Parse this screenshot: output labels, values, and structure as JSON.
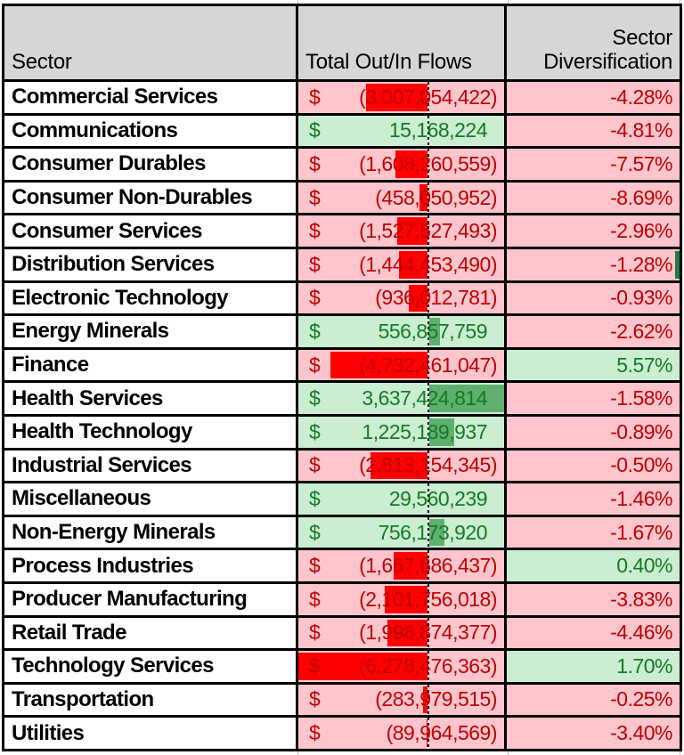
{
  "header": {
    "sector": "Sector",
    "flows": "Total Out/In Flows",
    "diversification_line1": "Sector",
    "diversification_line2": "Diversification"
  },
  "currency_symbol": "$",
  "colors": {
    "header_bg": "#D6D6D6",
    "border": "#000000",
    "gridline": "#BFBFBF",
    "negative_bg": "#FFC5CC",
    "negative_text": "#C00000",
    "positive_bg": "#CBEDD1",
    "positive_text": "#127B24",
    "negative_bar": "#FF0000",
    "positive_bar": "#5FAF6F",
    "selection_green": "#1E7D45"
  },
  "selection_marker": {
    "row": "Distribution Services"
  },
  "rows": [
    {
      "sector": "Commercial Services",
      "flow_display": "(3,007,054,422)",
      "flow_value": -3007054422,
      "div_display": "-4.28%",
      "div_value": -4.28
    },
    {
      "sector": "Communications",
      "flow_display": "15,168,224",
      "flow_value": 15168224,
      "div_display": "-4.81%",
      "div_value": -4.81
    },
    {
      "sector": "Consumer Durables",
      "flow_display": "(1,608,260,559)",
      "flow_value": -1608260559,
      "div_display": "-7.57%",
      "div_value": -7.57
    },
    {
      "sector": "Consumer Non-Durables",
      "flow_display": "(458,050,952)",
      "flow_value": -458050952,
      "div_display": "-8.69%",
      "div_value": -8.69
    },
    {
      "sector": "Consumer Services",
      "flow_display": "(1,527,527,493)",
      "flow_value": -1527527493,
      "div_display": "-2.96%",
      "div_value": -2.96
    },
    {
      "sector": "Distribution Services",
      "flow_display": "(1,444,453,490)",
      "flow_value": -1444453490,
      "div_display": "-1.28%",
      "div_value": -1.28
    },
    {
      "sector": "Electronic Technology",
      "flow_display": "(936,012,781)",
      "flow_value": -936012781,
      "div_display": "-0.93%",
      "div_value": -0.93
    },
    {
      "sector": "Energy Minerals",
      "flow_display": "556,857,759",
      "flow_value": 556857759,
      "div_display": "-2.62%",
      "div_value": -2.62
    },
    {
      "sector": "Finance",
      "flow_display": "(4,732,461,047)",
      "flow_value": -4732461047,
      "div_display": "5.57%",
      "div_value": 5.57
    },
    {
      "sector": "Health Services",
      "flow_display": "3,637,424,814",
      "flow_value": 3637424814,
      "div_display": "-1.58%",
      "div_value": -1.58
    },
    {
      "sector": "Health Technology",
      "flow_display": "1,225,189,937",
      "flow_value": 1225189937,
      "div_display": "-0.89%",
      "div_value": -0.89
    },
    {
      "sector": "Industrial Services",
      "flow_display": "(2,813,154,345)",
      "flow_value": -2813154345,
      "div_display": "-0.50%",
      "div_value": -0.5
    },
    {
      "sector": "Miscellaneous",
      "flow_display": "29,560,239",
      "flow_value": 29560239,
      "div_display": "-1.46%",
      "div_value": -1.46
    },
    {
      "sector": "Non-Energy Minerals",
      "flow_display": "756,173,920",
      "flow_value": 756173920,
      "div_display": "-1.67%",
      "div_value": -1.67
    },
    {
      "sector": "Process Industries",
      "flow_display": "(1,667,686,437)",
      "flow_value": -1667686437,
      "div_display": "0.40%",
      "div_value": 0.4
    },
    {
      "sector": "Producer Manufacturing",
      "flow_display": "(2,101,756,018)",
      "flow_value": -2101756018,
      "div_display": "-3.83%",
      "div_value": -3.83
    },
    {
      "sector": "Retail Trade",
      "flow_display": "(1,998,874,377)",
      "flow_value": -1998874377,
      "div_display": "-4.46%",
      "div_value": -4.46
    },
    {
      "sector": "Technology Services",
      "flow_display": "(6,278,476,363)",
      "flow_value": -6278476363,
      "div_display": "1.70%",
      "div_value": 1.7
    },
    {
      "sector": "Transportation",
      "flow_display": "(283,979,515)",
      "flow_value": -283979515,
      "div_display": "-0.25%",
      "div_value": -0.25
    },
    {
      "sector": "Utilities",
      "flow_display": "(89,964,569)",
      "flow_value": -89964569,
      "div_display": "-3.40%",
      "div_value": -3.4
    }
  ]
}
